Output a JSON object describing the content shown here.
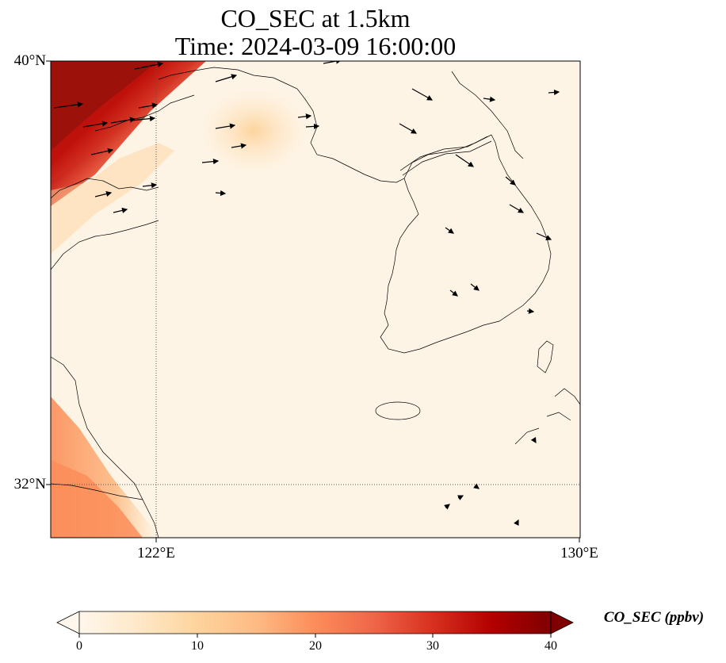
{
  "title": {
    "line1": "CO_SEC at 1.5km",
    "line2": "Time: 2024-03-09 16:00:00"
  },
  "map": {
    "lon_range": [
      120,
      130
    ],
    "lat_range": [
      31,
      40
    ],
    "gridlines": {
      "lon": 122,
      "lat": 32,
      "style": "dotted"
    },
    "lat_ticks": [
      {
        "value": 40,
        "label": "40°N"
      },
      {
        "value": 32,
        "label": "32°N"
      }
    ],
    "lon_ticks": [
      {
        "value": 122,
        "label": "122°E"
      },
      {
        "value": 130,
        "label": "130°E"
      }
    ]
  },
  "colorbar": {
    "label": "CO_SEC (ppbv)",
    "ticks": [
      "0",
      "10",
      "20",
      "30",
      "40"
    ],
    "range": [
      0,
      40
    ],
    "colormap": "OrRd",
    "extend": "both",
    "colors": [
      "#fff7ec",
      "#fee8c8",
      "#fdd49e",
      "#fdbb84",
      "#fc8d59",
      "#ef6548",
      "#d7301f",
      "#b30000",
      "#7f0000"
    ]
  },
  "wind_vectors": "black arrows"
}
